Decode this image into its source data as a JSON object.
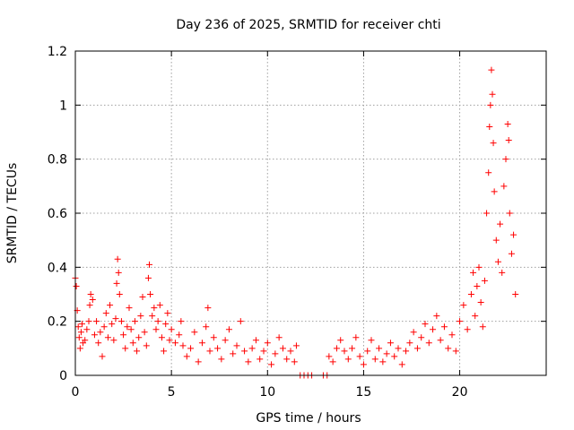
{
  "chart_data": {
    "type": "scatter",
    "title": "Day 236 of 2025, SRMTID for receiver chti",
    "xlabel": "GPS time / hours",
    "ylabel": "SRMTID / TECUs",
    "xlim": [
      0,
      24.5
    ],
    "ylim": [
      0,
      1.2
    ],
    "xticks": [
      0,
      5,
      10,
      15,
      20
    ],
    "xtick_labels": [
      "0",
      "5",
      "10",
      "15",
      "20"
    ],
    "yticks": [
      0,
      0.2,
      0.4,
      0.6,
      0.8,
      1,
      1.2
    ],
    "ytick_labels": [
      "0",
      "0.2",
      "0.4",
      "0.6",
      "0.8",
      "1",
      "1.2"
    ],
    "grid": true,
    "marker": "+",
    "color": "#ff0000",
    "series": [
      {
        "name": "SRMTID",
        "points": [
          [
            0.0,
            0.36
          ],
          [
            0.05,
            0.33
          ],
          [
            0.1,
            0.24
          ],
          [
            0.15,
            0.18
          ],
          [
            0.2,
            0.14
          ],
          [
            0.25,
            0.1
          ],
          [
            0.3,
            0.16
          ],
          [
            0.35,
            0.19
          ],
          [
            0.4,
            0.12
          ],
          [
            0.5,
            0.13
          ],
          [
            0.6,
            0.17
          ],
          [
            0.7,
            0.2
          ],
          [
            0.75,
            0.26
          ],
          [
            0.8,
            0.3
          ],
          [
            0.9,
            0.28
          ],
          [
            1.0,
            0.15
          ],
          [
            1.1,
            0.2
          ],
          [
            1.2,
            0.12
          ],
          [
            1.3,
            0.16
          ],
          [
            1.4,
            0.07
          ],
          [
            1.5,
            0.18
          ],
          [
            1.6,
            0.23
          ],
          [
            1.7,
            0.14
          ],
          [
            1.8,
            0.26
          ],
          [
            1.9,
            0.19
          ],
          [
            2.0,
            0.13
          ],
          [
            2.1,
            0.21
          ],
          [
            2.15,
            0.34
          ],
          [
            2.2,
            0.43
          ],
          [
            2.25,
            0.38
          ],
          [
            2.3,
            0.3
          ],
          [
            2.4,
            0.2
          ],
          [
            2.5,
            0.15
          ],
          [
            2.6,
            0.1
          ],
          [
            2.7,
            0.18
          ],
          [
            2.8,
            0.25
          ],
          [
            2.9,
            0.17
          ],
          [
            3.0,
            0.12
          ],
          [
            3.1,
            0.2
          ],
          [
            3.2,
            0.09
          ],
          [
            3.3,
            0.14
          ],
          [
            3.4,
            0.22
          ],
          [
            3.5,
            0.29
          ],
          [
            3.6,
            0.16
          ],
          [
            3.7,
            0.11
          ],
          [
            3.8,
            0.36
          ],
          [
            3.85,
            0.41
          ],
          [
            3.9,
            0.3
          ],
          [
            4.0,
            0.22
          ],
          [
            4.1,
            0.25
          ],
          [
            4.2,
            0.17
          ],
          [
            4.3,
            0.2
          ],
          [
            4.4,
            0.26
          ],
          [
            4.5,
            0.14
          ],
          [
            4.6,
            0.09
          ],
          [
            4.7,
            0.19
          ],
          [
            4.8,
            0.23
          ],
          [
            4.9,
            0.13
          ],
          [
            5.0,
            0.17
          ],
          [
            5.2,
            0.12
          ],
          [
            5.4,
            0.15
          ],
          [
            5.5,
            0.2
          ],
          [
            5.6,
            0.11
          ],
          [
            5.8,
            0.07
          ],
          [
            6.0,
            0.1
          ],
          [
            6.2,
            0.16
          ],
          [
            6.4,
            0.05
          ],
          [
            6.6,
            0.12
          ],
          [
            6.8,
            0.18
          ],
          [
            6.9,
            0.25
          ],
          [
            7.0,
            0.09
          ],
          [
            7.2,
            0.14
          ],
          [
            7.4,
            0.1
          ],
          [
            7.6,
            0.06
          ],
          [
            7.8,
            0.13
          ],
          [
            8.0,
            0.17
          ],
          [
            8.2,
            0.08
          ],
          [
            8.4,
            0.11
          ],
          [
            8.6,
            0.2
          ],
          [
            8.8,
            0.09
          ],
          [
            9.0,
            0.05
          ],
          [
            9.2,
            0.1
          ],
          [
            9.4,
            0.13
          ],
          [
            9.6,
            0.06
          ],
          [
            9.8,
            0.09
          ],
          [
            10.0,
            0.12
          ],
          [
            10.2,
            0.04
          ],
          [
            10.4,
            0.08
          ],
          [
            10.6,
            0.14
          ],
          [
            10.8,
            0.1
          ],
          [
            11.0,
            0.06
          ],
          [
            11.2,
            0.09
          ],
          [
            11.4,
            0.05
          ],
          [
            11.5,
            0.11
          ],
          [
            11.7,
            0.0
          ],
          [
            11.9,
            0.0
          ],
          [
            12.1,
            0.0
          ],
          [
            12.3,
            0.0
          ],
          [
            12.9,
            0.0
          ],
          [
            13.1,
            0.0
          ],
          [
            13.2,
            0.07
          ],
          [
            13.4,
            0.05
          ],
          [
            13.6,
            0.1
          ],
          [
            13.8,
            0.13
          ],
          [
            14.0,
            0.09
          ],
          [
            14.2,
            0.06
          ],
          [
            14.4,
            0.1
          ],
          [
            14.6,
            0.14
          ],
          [
            14.8,
            0.07
          ],
          [
            15.0,
            0.04
          ],
          [
            15.2,
            0.09
          ],
          [
            15.4,
            0.13
          ],
          [
            15.6,
            0.06
          ],
          [
            15.8,
            0.1
          ],
          [
            16.0,
            0.05
          ],
          [
            16.2,
            0.08
          ],
          [
            16.4,
            0.12
          ],
          [
            16.6,
            0.07
          ],
          [
            16.8,
            0.1
          ],
          [
            17.0,
            0.04
          ],
          [
            17.2,
            0.09
          ],
          [
            17.4,
            0.12
          ],
          [
            17.6,
            0.16
          ],
          [
            17.8,
            0.1
          ],
          [
            18.0,
            0.14
          ],
          [
            18.2,
            0.19
          ],
          [
            18.4,
            0.12
          ],
          [
            18.6,
            0.17
          ],
          [
            18.8,
            0.22
          ],
          [
            19.0,
            0.13
          ],
          [
            19.2,
            0.18
          ],
          [
            19.4,
            0.1
          ],
          [
            19.6,
            0.15
          ],
          [
            19.8,
            0.09
          ],
          [
            20.0,
            0.2
          ],
          [
            20.2,
            0.26
          ],
          [
            20.4,
            0.17
          ],
          [
            20.6,
            0.3
          ],
          [
            20.7,
            0.38
          ],
          [
            20.8,
            0.22
          ],
          [
            20.9,
            0.33
          ],
          [
            21.0,
            0.4
          ],
          [
            21.1,
            0.27
          ],
          [
            21.2,
            0.18
          ],
          [
            21.3,
            0.35
          ],
          [
            21.4,
            0.6
          ],
          [
            21.5,
            0.75
          ],
          [
            21.55,
            0.92
          ],
          [
            21.6,
            1.0
          ],
          [
            21.65,
            1.13
          ],
          [
            21.7,
            1.04
          ],
          [
            21.75,
            0.86
          ],
          [
            21.8,
            0.68
          ],
          [
            21.9,
            0.5
          ],
          [
            22.0,
            0.42
          ],
          [
            22.1,
            0.56
          ],
          [
            22.2,
            0.38
          ],
          [
            22.3,
            0.7
          ],
          [
            22.4,
            0.8
          ],
          [
            22.5,
            0.93
          ],
          [
            22.55,
            0.87
          ],
          [
            22.6,
            0.6
          ],
          [
            22.7,
            0.45
          ],
          [
            22.8,
            0.52
          ],
          [
            22.9,
            0.3
          ]
        ]
      }
    ]
  }
}
